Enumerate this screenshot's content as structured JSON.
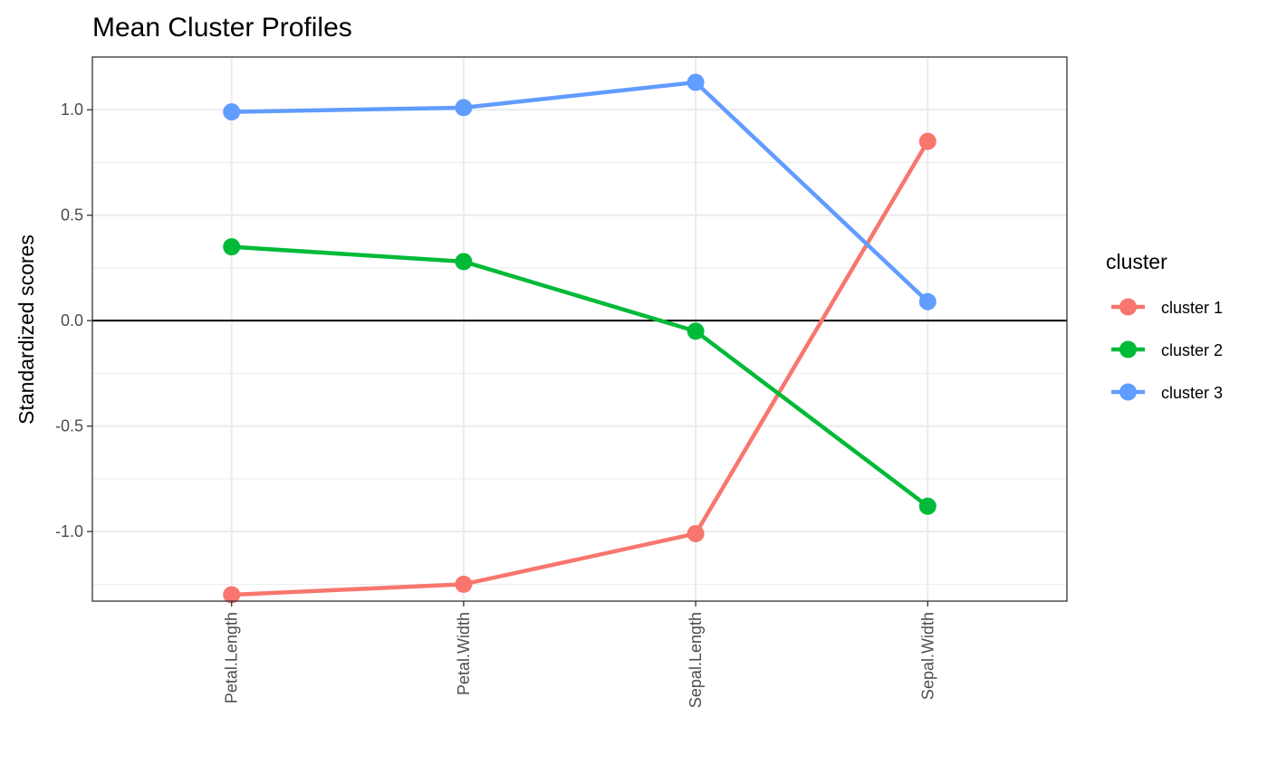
{
  "chart_data": {
    "type": "line",
    "title": "Mean Cluster Profiles",
    "xlabel": "",
    "ylabel": "Standardized scores",
    "categories": [
      "Petal.Length",
      "Petal.Width",
      "Sepal.Length",
      "Sepal.Width"
    ],
    "yticks": [
      "-1.0",
      "-0.5",
      "0.0",
      "0.5",
      "1.0"
    ],
    "ylim": [
      -1.33,
      1.25
    ],
    "grid": true,
    "reference_line": 0,
    "legend": {
      "title": "cluster",
      "position": "right"
    },
    "series": [
      {
        "name": "cluster 1",
        "color": "#F8766D",
        "values": [
          -1.3,
          -1.25,
          -1.01,
          0.85
        ]
      },
      {
        "name": "cluster 2",
        "color": "#00BA38",
        "values": [
          0.35,
          0.28,
          -0.05,
          -0.88
        ]
      },
      {
        "name": "cluster 3",
        "color": "#619CFF",
        "values": [
          0.99,
          1.01,
          1.13,
          0.09
        ]
      }
    ]
  }
}
